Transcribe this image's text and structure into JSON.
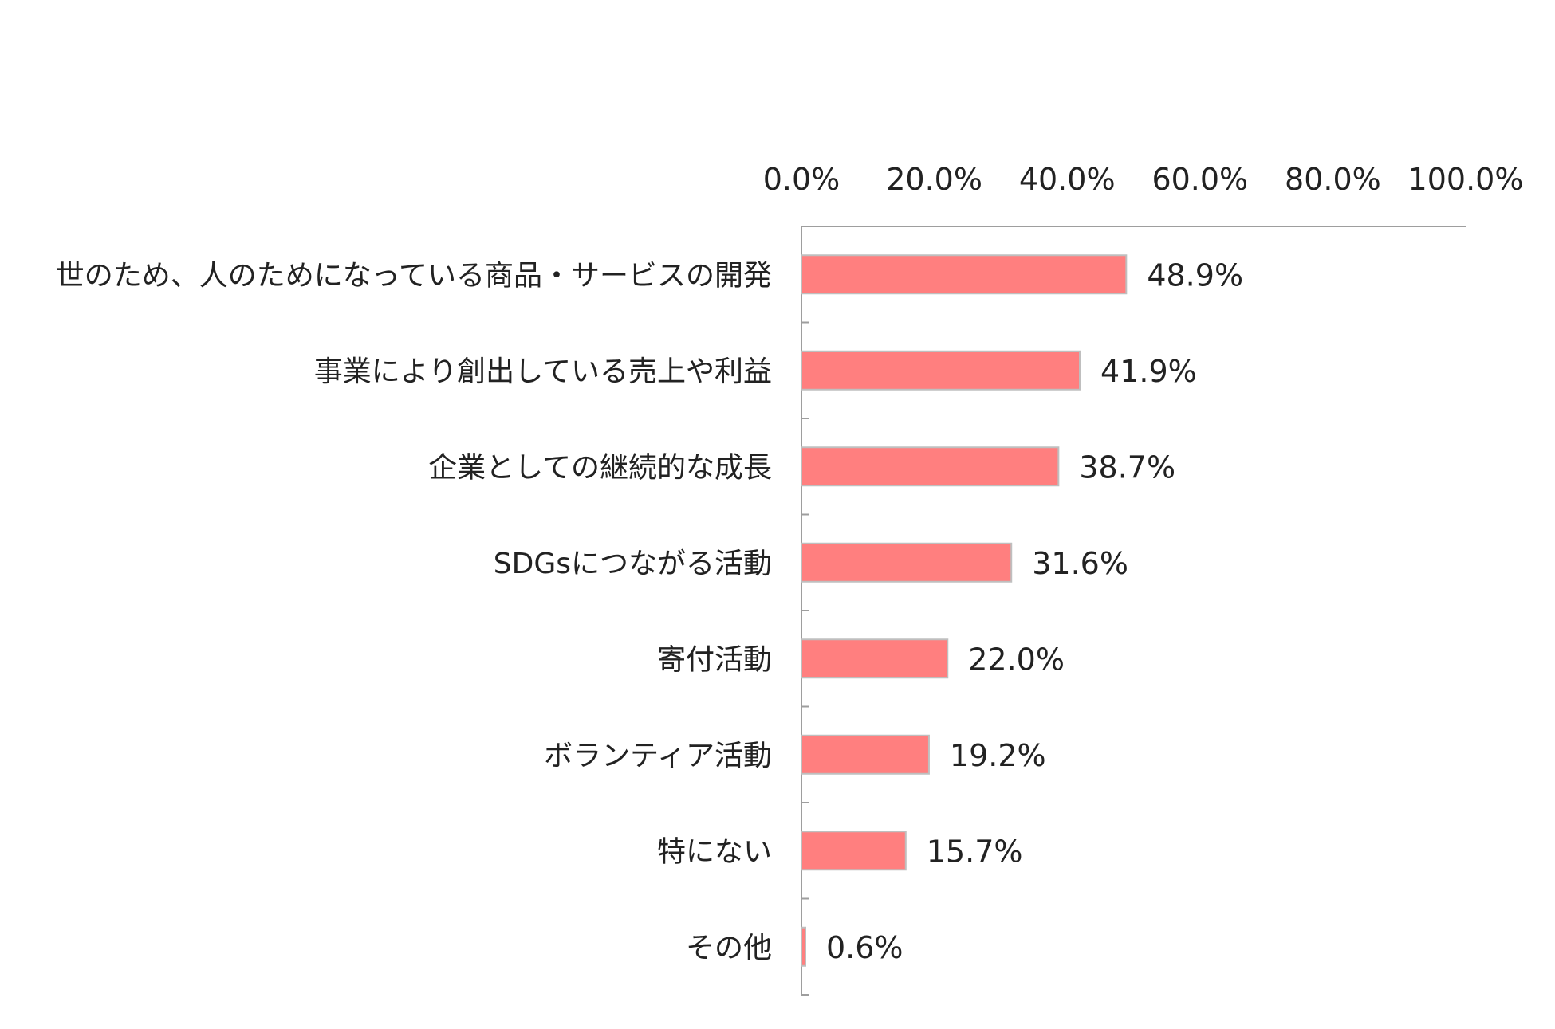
{
  "chart_data": {
    "type": "bar",
    "orientation": "horizontal",
    "categories": [
      "世のため、人のためになっている商品・サービスの開発",
      "事業により創出している売上や利益",
      "企業としての継続的な成長",
      "SDGsにつながる活動",
      "寄付活動",
      "ボランティア活動",
      "特にない",
      "その他"
    ],
    "values": [
      48.9,
      41.9,
      38.7,
      31.6,
      22.0,
      19.2,
      15.7,
      0.6
    ],
    "data_labels": [
      "48.9%",
      "41.9%",
      "38.7%",
      "31.6%",
      "22.0%",
      "19.2%",
      "15.7%",
      "0.6%"
    ],
    "xlim": [
      0,
      100
    ],
    "x_ticks": [
      0,
      20,
      40,
      60,
      80,
      100
    ],
    "x_tick_labels": [
      "0.0%",
      "20.0%",
      "40.0%",
      "60.0%",
      "80.0%",
      "100.0%"
    ],
    "x_axis_position": "top",
    "bar_color": "#FF7F7F",
    "bar_edge_color": "#BFBFBF",
    "grid": false,
    "legend": "none"
  }
}
